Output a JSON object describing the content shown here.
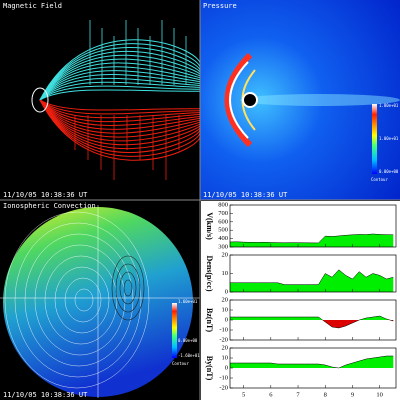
{
  "panels": [
    {
      "title": "Magnetic Field",
      "time": "11/10/05 10:38:36 UT"
    },
    {
      "title": "Pressure",
      "time": "11/10/05 10:38:36 UT",
      "colorbar": [
        "1.80e+01",
        "1.00e+01",
        "0.00e+00"
      ],
      "colorbar_title": "Contour"
    },
    {
      "title": "Ionospheric Convection",
      "time": "11/10/05 10:38:36 UT",
      "colorbar": [
        "1.60e+01",
        "0.00e+00",
        "-1.60e+01"
      ],
      "colorbar_title": "Contour"
    }
  ],
  "solar_wind": {
    "x": [
      4.5,
      4.75,
      5,
      5.25,
      5.5,
      5.75,
      6,
      6.25,
      6.5,
      6.75,
      7,
      7.25,
      7.5,
      7.75,
      8,
      8.25,
      8.5,
      8.75,
      9,
      9.25,
      9.5,
      9.75,
      10,
      10.25,
      10.5
    ],
    "xlim": [
      4.5,
      10.6
    ],
    "xticks": [
      5,
      6,
      7,
      8,
      9,
      10
    ],
    "positive_color": "#00ee00",
    "negative_color": "#dd0000",
    "plots": [
      {
        "label": "V(km/s)",
        "ylim": [
          300,
          800
        ],
        "yticks": [
          300,
          400,
          500,
          600,
          700,
          800
        ],
        "values": [
          360,
          362,
          358,
          356,
          355,
          357,
          354,
          352,
          350,
          352,
          351,
          350,
          349,
          348,
          430,
          425,
          432,
          440,
          445,
          450,
          448,
          455,
          450,
          447,
          445
        ]
      },
      {
        "label": "Dens(p/cc)",
        "ylim": [
          0,
          20
        ],
        "yticks": [
          0,
          10,
          20
        ],
        "values": [
          5,
          5,
          5,
          5,
          5,
          5,
          5,
          5,
          4,
          4,
          4,
          4,
          4,
          4,
          10,
          8,
          12,
          9,
          7,
          11,
          8,
          10,
          9,
          7,
          8
        ]
      },
      {
        "label": "Bz(nT)",
        "ylim": [
          -20,
          20
        ],
        "yticks": [
          -20,
          -10,
          0,
          10,
          20
        ],
        "values": [
          3,
          3,
          3,
          3,
          3,
          3,
          3,
          3,
          3,
          3,
          3,
          3,
          3,
          3,
          -2,
          -7,
          -8,
          -6,
          -3,
          0,
          2,
          3,
          4,
          1,
          -1
        ]
      },
      {
        "label": "By(nT)",
        "ylim": [
          -20,
          20
        ],
        "yticks": [
          -20,
          -10,
          0,
          10,
          20
        ],
        "values": [
          5,
          5,
          5,
          5,
          5,
          5,
          5,
          4,
          4,
          4,
          4,
          4,
          4,
          4,
          3,
          1,
          0,
          3,
          5,
          7,
          9,
          10,
          11,
          12,
          12
        ]
      }
    ]
  }
}
